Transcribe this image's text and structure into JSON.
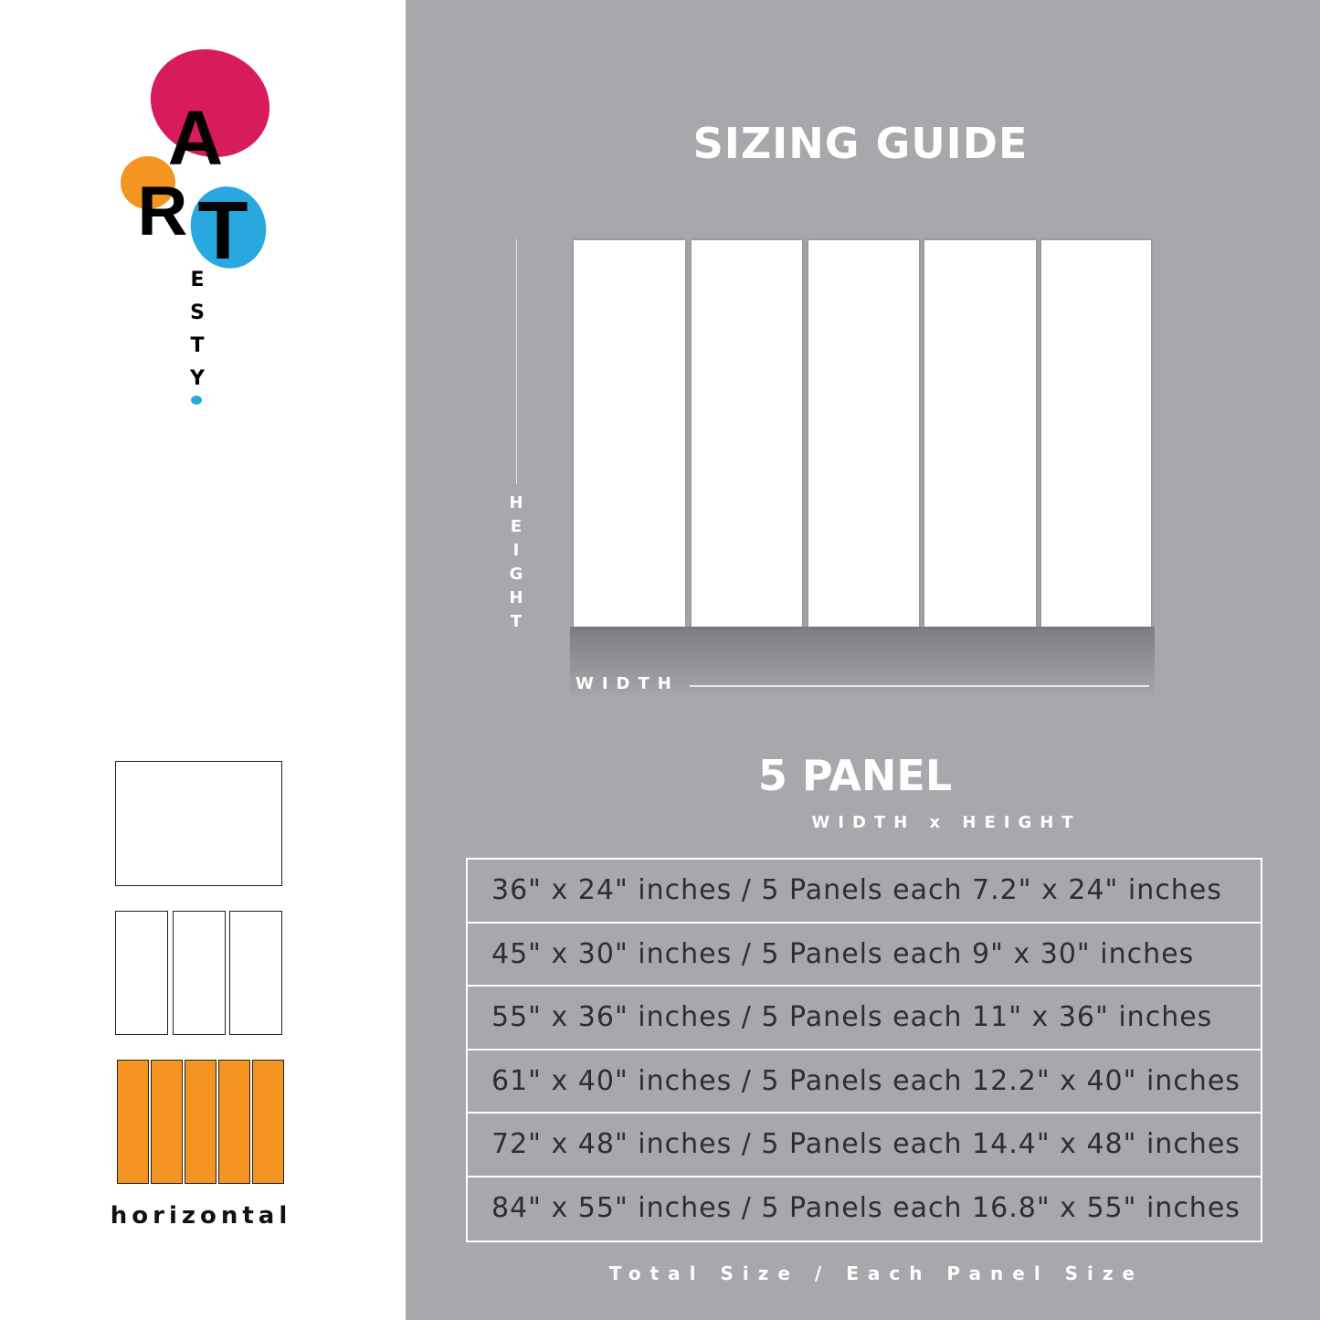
{
  "logo": {
    "text": "ART ESTY",
    "colors": {
      "pink": "#d81b5a",
      "orange": "#f39520",
      "blue": "#29a8e0"
    }
  },
  "header": {
    "title": "SIZING GUIDE"
  },
  "diagram": {
    "height_label": "HEIGHT",
    "width_label": "WIDTH",
    "panel_count": 5
  },
  "layout_options": {
    "selected": "horizontal",
    "label": "horizontal",
    "accent": "#f39520"
  },
  "section": {
    "title": "5 PANEL",
    "subtitle": "WIDTH x HEIGHT"
  },
  "sizes": [
    "36\" x 24\" inches / 5 Panels each 7.2\" x 24\" inches",
    "45\" x 30\" inches / 5 Panels each 9\" x 30\" inches",
    "55\" x 36\" inches / 5 Panels each 11\" x 36\" inches",
    "61\" x 40\" inches / 5 Panels each 12.2\" x 40\" inches",
    "72\" x 48\" inches / 5 Panels each 14.4\" x 48\" inches",
    "84\" x 55\" inches / 5 Panels each 16.8\" x 55\" inches"
  ],
  "footer": "Total Size / Each Panel Size"
}
